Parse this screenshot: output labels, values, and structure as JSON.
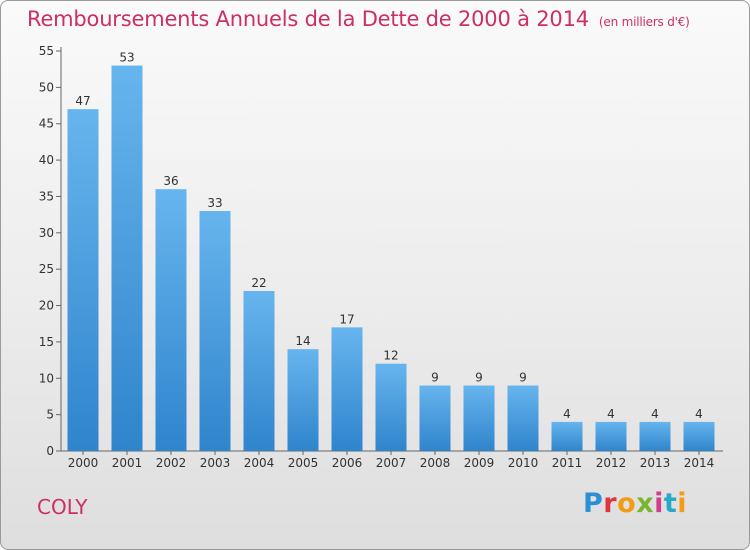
{
  "title": "Remboursements Annuels de la Dette de 2000 à 2014",
  "unit": "(en milliers d'€)",
  "commune": "COLY",
  "brand": "Proxiti",
  "colors": {
    "title": "#cc2f63",
    "bar": "#3d95dc",
    "bar_light": "#67b5ee"
  },
  "chart_data": {
    "type": "bar",
    "title": "Remboursements Annuels de la Dette de 2000 à 2014",
    "subtitle": "(en milliers d'€)",
    "xlabel": "",
    "ylabel": "",
    "categories": [
      "2000",
      "2001",
      "2002",
      "2003",
      "2004",
      "2005",
      "2006",
      "2007",
      "2008",
      "2009",
      "2010",
      "2011",
      "2012",
      "2013",
      "2014"
    ],
    "values": [
      47,
      53,
      36,
      33,
      22,
      14,
      17,
      12,
      9,
      9,
      9,
      4,
      4,
      4,
      4
    ],
    "ylim": [
      0,
      55
    ],
    "yticks": [
      0,
      5,
      10,
      15,
      20,
      25,
      30,
      35,
      40,
      45,
      50,
      55
    ],
    "grid": false,
    "legend": "none"
  }
}
